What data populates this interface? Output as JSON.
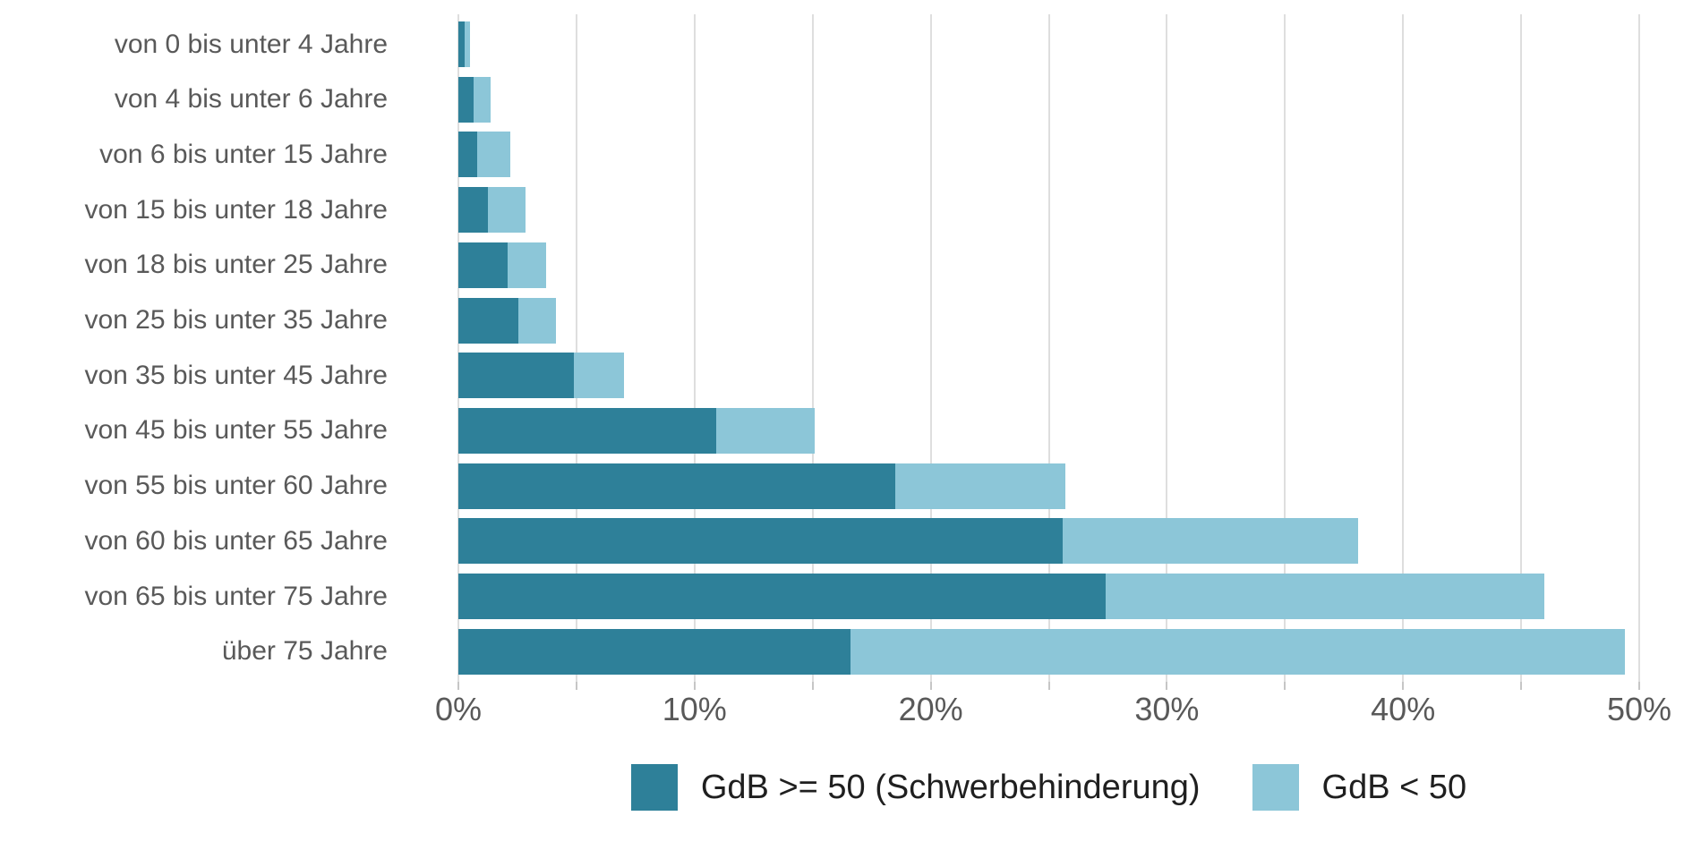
{
  "chart_data": {
    "type": "bar",
    "orientation": "horizontal",
    "stacked": true,
    "title": "",
    "xlabel": "",
    "ylabel": "",
    "categories": [
      "von 0 bis unter 4 Jahre",
      "von 4 bis unter 6 Jahre",
      "von 6 bis unter 15 Jahre",
      "von 15 bis unter 18 Jahre",
      "von 18 bis unter 25 Jahre",
      "von 25 bis unter 35 Jahre",
      "von 35 bis unter 45 Jahre",
      "von 45 bis unter 55 Jahre",
      "von 55 bis unter 60 Jahre",
      "von 60 bis unter 65 Jahre",
      "von 65 bis unter 75 Jahre",
      "über 75 Jahre"
    ],
    "series": [
      {
        "name": "GdB >= 50 (Schwerbehinderung)",
        "color": "#2E8099",
        "values": [
          0.25,
          0.65,
          0.8,
          1.25,
          2.1,
          2.55,
          4.9,
          10.9,
          18.5,
          25.6,
          27.4,
          16.6
        ]
      },
      {
        "name": "GdB < 50",
        "color": "#8CC6D8",
        "values": [
          0.25,
          0.7,
          1.4,
          1.6,
          1.6,
          1.6,
          2.1,
          4.2,
          7.2,
          12.5,
          18.6,
          32.8
        ]
      }
    ],
    "totals": [
      0.5,
      1.35,
      2.2,
      2.85,
      3.7,
      4.15,
      7.0,
      15.1,
      25.7,
      38.1,
      46.0,
      49.4
    ],
    "xlim": [
      0,
      50
    ],
    "x_minor_tick_step": 5,
    "x_major_ticks": [
      {
        "value": 0,
        "label": "0%"
      },
      {
        "value": 10,
        "label": "10%"
      },
      {
        "value": 20,
        "label": "20%"
      },
      {
        "value": 30,
        "label": "30%"
      },
      {
        "value": 40,
        "label": "40%"
      },
      {
        "value": 50,
        "label": "50%"
      }
    ],
    "grid": true,
    "legend_position": "bottom"
  },
  "styles": {
    "background": "#FFFFFF",
    "grid_color": "#DEDEDE",
    "tick_color": "#C6C6C6",
    "category_label_color": "#595959",
    "tick_label_color": "#595959",
    "legend_text_color": "#1F1F1F"
  }
}
